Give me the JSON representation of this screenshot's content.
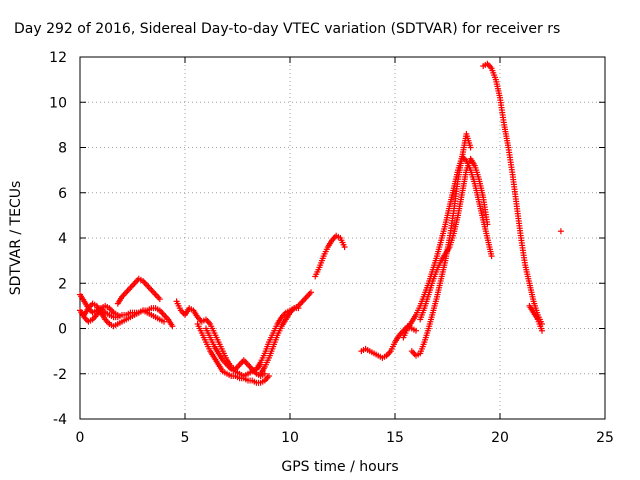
{
  "chart_data": {
    "type": "scatter",
    "title": "Day 292 of 2016, Sidereal Day-to-day VTEC variation (SDTVAR) for receiver rs",
    "xlabel": "GPS time / hours",
    "ylabel": "SDTVAR / TECUs",
    "xlim": [
      0,
      25
    ],
    "ylim": [
      -4,
      12
    ],
    "xticks": [
      "0",
      "5",
      "10",
      "15",
      "20",
      "25"
    ],
    "yticks": [
      "-4",
      "-2",
      "0",
      "2",
      "4",
      "6",
      "8",
      "10",
      "12"
    ],
    "grid": true,
    "marker": "plus",
    "color": "#ff0000",
    "series": [
      {
        "x": [
          0.0,
          0.2,
          0.4,
          0.6,
          0.8,
          1.0,
          1.2,
          1.4,
          1.6,
          1.8,
          2.0,
          2.2,
          2.4,
          2.6,
          2.8,
          3.0,
          3.2,
          3.4,
          3.6,
          3.8,
          4.0,
          4.2,
          4.4
        ],
        "y": [
          1.5,
          1.2,
          0.9,
          0.7,
          0.8,
          0.9,
          0.7,
          0.6,
          0.5,
          0.5,
          0.6,
          0.6,
          0.7,
          0.7,
          0.7,
          0.8,
          0.8,
          0.9,
          0.9,
          0.8,
          0.6,
          0.4,
          0.1
        ]
      },
      {
        "x": [
          0.0,
          0.2,
          0.4,
          0.6,
          0.8,
          1.0,
          1.2,
          1.4,
          1.6,
          1.8
        ],
        "y": [
          0.8,
          0.5,
          0.3,
          0.4,
          0.6,
          0.9,
          1.0,
          0.9,
          0.7,
          0.6
        ]
      },
      {
        "x": [
          0.2,
          0.4,
          0.6,
          0.8,
          1.0,
          1.2,
          1.4,
          1.6,
          1.8,
          2.0,
          2.2,
          2.4,
          2.6,
          2.8,
          3.0,
          3.2,
          3.4,
          3.6,
          3.8,
          4.0
        ],
        "y": [
          0.6,
          0.9,
          1.1,
          1.0,
          0.7,
          0.4,
          0.2,
          0.1,
          0.2,
          0.3,
          0.4,
          0.5,
          0.6,
          0.7,
          0.8,
          0.7,
          0.6,
          0.5,
          0.4,
          0.3
        ]
      },
      {
        "x": [
          1.8,
          2.0,
          2.2,
          2.4,
          2.6,
          2.8,
          3.0,
          3.2,
          3.4,
          3.6,
          3.8
        ],
        "y": [
          1.1,
          1.4,
          1.6,
          1.8,
          2.0,
          2.2,
          2.1,
          1.9,
          1.7,
          1.5,
          1.3
        ]
      },
      {
        "x": [
          4.6,
          4.8,
          5.0,
          5.2,
          5.4,
          5.6,
          5.8,
          6.0,
          6.2,
          6.4,
          6.6,
          6.8,
          7.0,
          7.2,
          7.4,
          7.6,
          7.8,
          8.0,
          8.2,
          8.4,
          8.6,
          8.8
        ],
        "y": [
          1.2,
          0.8,
          0.6,
          0.9,
          0.8,
          0.5,
          0.3,
          0.4,
          0.2,
          -0.2,
          -0.6,
          -1.0,
          -1.4,
          -1.7,
          -1.8,
          -1.6,
          -1.4,
          -1.6,
          -1.8,
          -2.0,
          -2.1,
          -2.0
        ]
      },
      {
        "x": [
          5.6,
          5.8,
          6.0,
          6.2,
          6.4,
          6.6,
          6.8,
          7.0,
          7.2,
          7.4,
          7.6,
          7.8,
          8.0,
          8.2,
          8.4,
          8.6,
          8.8,
          9.0
        ],
        "y": [
          0.2,
          -0.2,
          -0.6,
          -1.0,
          -1.3,
          -1.6,
          -1.9,
          -2.0,
          -2.1,
          -2.1,
          -2.2,
          -2.2,
          -2.3,
          -2.3,
          -2.4,
          -2.4,
          -2.3,
          -2.1
        ]
      },
      {
        "x": [
          6.0,
          6.2,
          6.4,
          6.6,
          6.8,
          7.0,
          7.2,
          7.4,
          7.6,
          7.8,
          8.0,
          8.2,
          8.4,
          8.6
        ],
        "y": [
          0.0,
          -0.4,
          -0.8,
          -1.1,
          -1.4,
          -1.6,
          -1.8,
          -1.9,
          -2.0,
          -2.1,
          -2.0,
          -1.9,
          -1.8,
          -1.6
        ]
      },
      {
        "x": [
          8.6,
          8.8,
          9.0,
          9.2,
          9.4,
          9.6,
          9.8,
          10.0,
          10.2,
          10.4,
          10.6,
          10.8,
          11.0
        ],
        "y": [
          -2.0,
          -1.7,
          -1.3,
          -0.8,
          -0.3,
          0.1,
          0.4,
          0.7,
          0.9,
          1.0,
          1.2,
          1.4,
          1.6
        ]
      },
      {
        "x": [
          8.4,
          8.6,
          8.8,
          9.0,
          9.2,
          9.4,
          9.6,
          9.8,
          10.0,
          10.2,
          10.4
        ],
        "y": [
          -1.8,
          -1.5,
          -1.1,
          -0.6,
          -0.2,
          0.2,
          0.5,
          0.7,
          0.8,
          0.9,
          0.9
        ]
      },
      {
        "x": [
          11.2,
          11.4,
          11.6,
          11.8,
          12.0,
          12.2,
          12.4,
          12.6
        ],
        "y": [
          2.3,
          2.7,
          3.2,
          3.6,
          3.9,
          4.1,
          4.0,
          3.6
        ]
      },
      {
        "x": [
          13.4,
          13.6,
          13.8,
          14.0,
          14.2,
          14.4,
          14.6,
          14.8,
          15.0,
          15.2,
          15.4,
          15.6,
          15.8,
          16.0
        ],
        "y": [
          -1.0,
          -0.9,
          -1.0,
          -1.1,
          -1.2,
          -1.3,
          -1.2,
          -1.0,
          -0.6,
          -0.3,
          -0.1,
          0.1,
          0.0,
          -0.1
        ]
      },
      {
        "x": [
          15.4,
          15.6,
          15.8,
          16.0,
          16.2,
          16.4,
          16.6,
          16.8,
          17.0,
          17.2,
          17.4,
          17.6,
          17.8,
          18.0,
          18.2,
          18.4,
          18.6,
          18.8,
          19.0,
          19.2,
          19.4,
          19.6
        ],
        "y": [
          -0.4,
          0.0,
          0.3,
          0.6,
          1.0,
          1.5,
          2.0,
          2.6,
          3.2,
          3.9,
          4.6,
          5.4,
          6.2,
          7.0,
          7.6,
          7.4,
          7.0,
          6.4,
          5.6,
          4.8,
          4.0,
          3.2
        ]
      },
      {
        "x": [
          15.8,
          16.0,
          16.2,
          16.4,
          16.6,
          16.8,
          17.0,
          17.2,
          17.4,
          17.6,
          17.8,
          18.0,
          18.2,
          18.4,
          18.6
        ],
        "y": [
          -1.0,
          -1.2,
          -1.1,
          -0.6,
          0.0,
          0.7,
          1.4,
          2.2,
          3.0,
          4.0,
          5.2,
          6.6,
          7.6,
          8.6,
          8.0
        ]
      },
      {
        "x": [
          16.2,
          16.4,
          16.6,
          16.8,
          17.0,
          17.2,
          17.4,
          17.6,
          17.8,
          18.0,
          18.2,
          18.4,
          18.6,
          18.8,
          19.0,
          19.2,
          19.4
        ],
        "y": [
          0.4,
          0.9,
          1.5,
          2.1,
          2.6,
          3.0,
          3.3,
          3.6,
          4.2,
          5.0,
          6.0,
          7.0,
          7.5,
          7.2,
          6.6,
          5.8,
          4.6
        ]
      },
      {
        "x": [
          19.2,
          19.4,
          19.6,
          19.8,
          20.0,
          20.2,
          20.4,
          20.6,
          20.8,
          21.0,
          21.2,
          21.4,
          21.6,
          21.8,
          22.0
        ],
        "y": [
          11.6,
          11.7,
          11.5,
          11.0,
          10.2,
          9.0,
          8.0,
          6.8,
          5.4,
          4.0,
          2.8,
          2.0,
          1.2,
          0.6,
          0.2
        ]
      },
      {
        "x": [
          21.4,
          21.6,
          21.8,
          22.0
        ],
        "y": [
          1.0,
          0.7,
          0.4,
          -0.1
        ]
      },
      {
        "x": [
          22.9
        ],
        "y": [
          4.3
        ]
      }
    ]
  }
}
